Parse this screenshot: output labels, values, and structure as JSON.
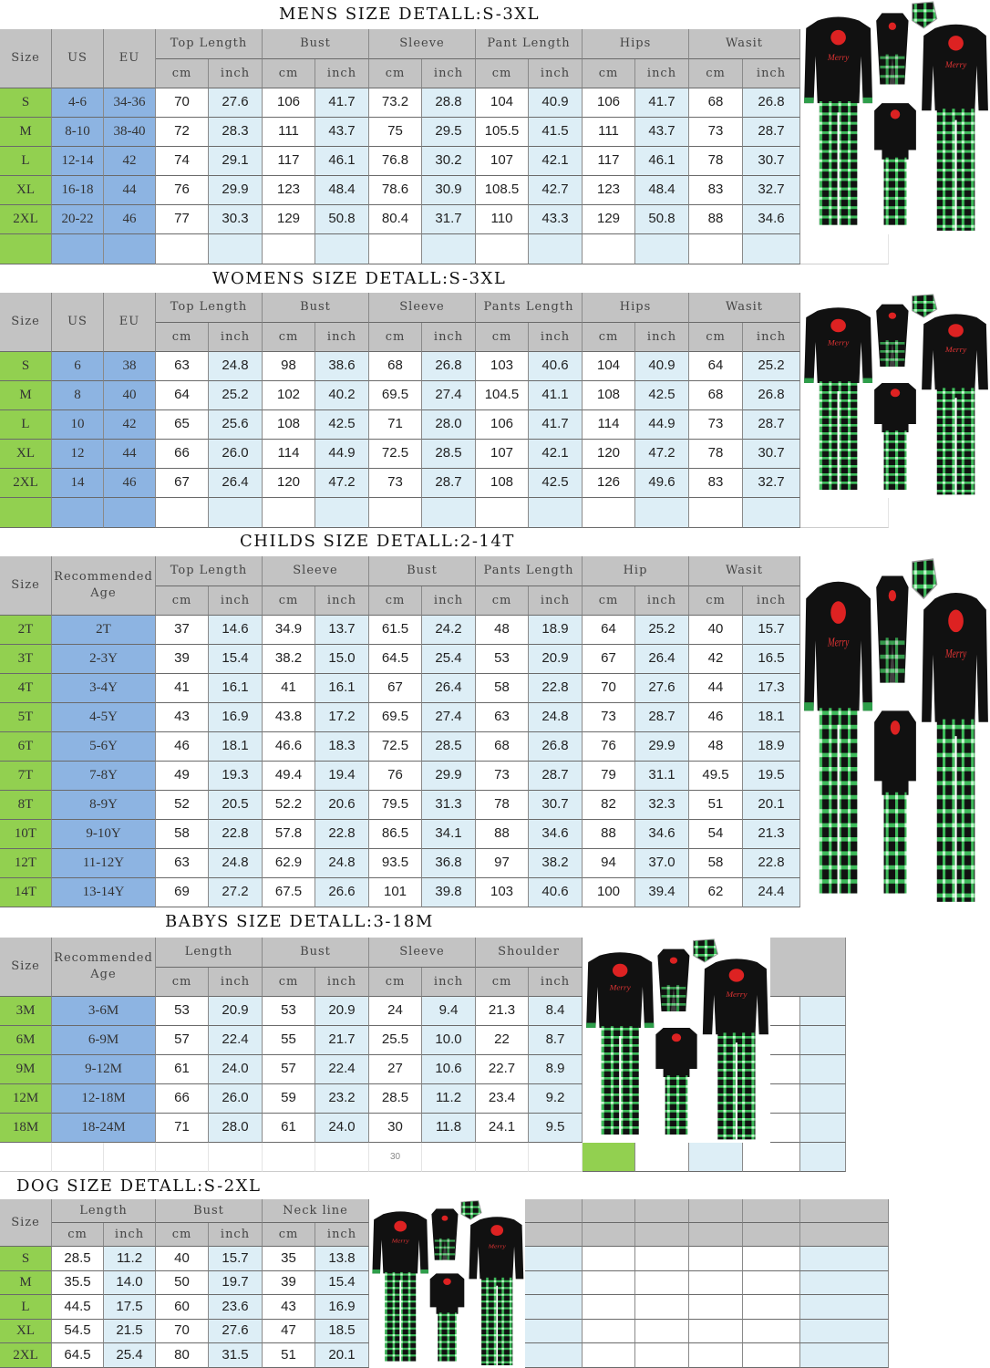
{
  "units": {
    "cm": "cm",
    "inch": "inch"
  },
  "mens": {
    "title": "MENS SIZE DETALL:S-3XL",
    "fixed_headers": [
      "Size",
      "US",
      "EU"
    ],
    "groups": [
      "Top Length",
      "Bust",
      "Sleeve",
      "Pant Length",
      "Hips",
      "Wasit"
    ],
    "rows": [
      [
        "S",
        "4-6",
        "34-36",
        "70",
        "27.6",
        "106",
        "41.7",
        "73.2",
        "28.8",
        "104",
        "40.9",
        "106",
        "41.7",
        "68",
        "26.8"
      ],
      [
        "M",
        "8-10",
        "38-40",
        "72",
        "28.3",
        "111",
        "43.7",
        "75",
        "29.5",
        "105.5",
        "41.5",
        "111",
        "43.7",
        "73",
        "28.7"
      ],
      [
        "L",
        "12-14",
        "42",
        "74",
        "29.1",
        "117",
        "46.1",
        "76.8",
        "30.2",
        "107",
        "42.1",
        "117",
        "46.1",
        "78",
        "30.7"
      ],
      [
        "XL",
        "16-18",
        "44",
        "76",
        "29.9",
        "123",
        "48.4",
        "78.6",
        "30.9",
        "108.5",
        "42.7",
        "123",
        "48.4",
        "83",
        "32.7"
      ],
      [
        "2XL",
        "20-22",
        "46",
        "77",
        "30.3",
        "129",
        "50.8",
        "80.4",
        "31.7",
        "110",
        "43.3",
        "129",
        "50.8",
        "88",
        "34.6"
      ]
    ]
  },
  "womens": {
    "title": "WOMENS SIZE DETALL:S-3XL",
    "fixed_headers": [
      "Size",
      "US",
      "EU"
    ],
    "groups": [
      "Top Length",
      "Bust",
      "Sleeve",
      "Pants Length",
      "Hips",
      "Wasit"
    ],
    "rows": [
      [
        "S",
        "6",
        "38",
        "63",
        "24.8",
        "98",
        "38.6",
        "68",
        "26.8",
        "103",
        "40.6",
        "104",
        "40.9",
        "64",
        "25.2"
      ],
      [
        "M",
        "8",
        "40",
        "64",
        "25.2",
        "102",
        "40.2",
        "69.5",
        "27.4",
        "104.5",
        "41.1",
        "108",
        "42.5",
        "68",
        "26.8"
      ],
      [
        "L",
        "10",
        "42",
        "65",
        "25.6",
        "108",
        "42.5",
        "71",
        "28.0",
        "106",
        "41.7",
        "114",
        "44.9",
        "73",
        "28.7"
      ],
      [
        "XL",
        "12",
        "44",
        "66",
        "26.0",
        "114",
        "44.9",
        "72.5",
        "28.5",
        "107",
        "42.1",
        "120",
        "47.2",
        "78",
        "30.7"
      ],
      [
        "2XL",
        "14",
        "46",
        "67",
        "26.4",
        "120",
        "47.2",
        "73",
        "28.7",
        "108",
        "42.5",
        "126",
        "49.6",
        "83",
        "32.7"
      ]
    ]
  },
  "childs": {
    "title": "CHILDS SIZE DETALL:2-14T",
    "fixed_headers": [
      "Size",
      "Recommended Age"
    ],
    "groups": [
      "Top Length",
      "Sleeve",
      "Bust",
      "Pants Length",
      "Hip",
      "Wasit"
    ],
    "rows": [
      [
        "2T",
        "2T",
        "37",
        "14.6",
        "34.9",
        "13.7",
        "61.5",
        "24.2",
        "48",
        "18.9",
        "64",
        "25.2",
        "40",
        "15.7"
      ],
      [
        "3T",
        "2-3Y",
        "39",
        "15.4",
        "38.2",
        "15.0",
        "64.5",
        "25.4",
        "53",
        "20.9",
        "67",
        "26.4",
        "42",
        "16.5"
      ],
      [
        "4T",
        "3-4Y",
        "41",
        "16.1",
        "41",
        "16.1",
        "67",
        "26.4",
        "58",
        "22.8",
        "70",
        "27.6",
        "44",
        "17.3"
      ],
      [
        "5T",
        "4-5Y",
        "43",
        "16.9",
        "43.8",
        "17.2",
        "69.5",
        "27.4",
        "63",
        "24.8",
        "73",
        "28.7",
        "46",
        "18.1"
      ],
      [
        "6T",
        "5-6Y",
        "46",
        "18.1",
        "46.6",
        "18.3",
        "72.5",
        "28.5",
        "68",
        "26.8",
        "76",
        "29.9",
        "48",
        "18.9"
      ],
      [
        "7T",
        "7-8Y",
        "49",
        "19.3",
        "49.4",
        "19.4",
        "76",
        "29.9",
        "73",
        "28.7",
        "79",
        "31.1",
        "49.5",
        "19.5"
      ],
      [
        "8T",
        "8-9Y",
        "52",
        "20.5",
        "52.2",
        "20.6",
        "79.5",
        "31.3",
        "78",
        "30.7",
        "82",
        "32.3",
        "51",
        "20.1"
      ],
      [
        "10T",
        "9-10Y",
        "58",
        "22.8",
        "57.8",
        "22.8",
        "86.5",
        "34.1",
        "88",
        "34.6",
        "88",
        "34.6",
        "54",
        "21.3"
      ],
      [
        "12T",
        "11-12Y",
        "63",
        "24.8",
        "62.9",
        "24.8",
        "93.5",
        "36.8",
        "97",
        "38.2",
        "94",
        "37.0",
        "58",
        "22.8"
      ],
      [
        "14T",
        "13-14Y",
        "69",
        "27.2",
        "67.5",
        "26.6",
        "101",
        "39.8",
        "103",
        "40.6",
        "100",
        "39.4",
        "62",
        "24.4"
      ]
    ]
  },
  "babys": {
    "title": "BABYS SIZE DETALL:3-18M",
    "fixed_headers": [
      "Size",
      "Recommended Age"
    ],
    "groups": [
      "Length",
      "Bust",
      "Sleeve",
      "Shoulder"
    ],
    "rows": [
      [
        "3M",
        "3-6M",
        "53",
        "20.9",
        "53",
        "20.9",
        "24",
        "9.4",
        "21.3",
        "8.4"
      ],
      [
        "6M",
        "6-9M",
        "57",
        "22.4",
        "55",
        "21.7",
        "25.5",
        "10.0",
        "22",
        "8.7"
      ],
      [
        "9M",
        "9-12M",
        "61",
        "24.0",
        "57",
        "22.4",
        "27",
        "10.6",
        "22.7",
        "8.9"
      ],
      [
        "12M",
        "12-18M",
        "66",
        "26.0",
        "59",
        "23.2",
        "28.5",
        "11.2",
        "23.4",
        "9.2"
      ],
      [
        "18M",
        "18-24M",
        "71",
        "28.0",
        "61",
        "24.0",
        "30",
        "11.8",
        "24.1",
        "9.5"
      ]
    ],
    "footnote": "30"
  },
  "dog": {
    "title": "DOG SIZE DETALL:S-2XL",
    "fixed_headers": [
      "Size"
    ],
    "groups": [
      "Length",
      "Bust",
      "Neck line"
    ],
    "rows": [
      [
        "S",
        "28.5",
        "11.2",
        "40",
        "15.7",
        "35",
        "13.8"
      ],
      [
        "M",
        "35.5",
        "14.0",
        "50",
        "19.7",
        "39",
        "15.4"
      ],
      [
        "L",
        "44.5",
        "17.5",
        "60",
        "23.6",
        "43",
        "16.9"
      ],
      [
        "XL",
        "54.5",
        "21.5",
        "70",
        "27.6",
        "47",
        "18.5"
      ],
      [
        "2XL",
        "64.5",
        "25.4",
        "80",
        "31.5",
        "51",
        "20.1"
      ]
    ]
  },
  "colors": {
    "header": "#c3c3c3",
    "size_col": "#92d050",
    "us_eu_col": "#8db4e2",
    "inch_col": "#ddeef6",
    "shirt": "#111111",
    "plaid": "#2e9e4a"
  },
  "product_image": {
    "icon": "family-christmas-pajama-photo"
  }
}
